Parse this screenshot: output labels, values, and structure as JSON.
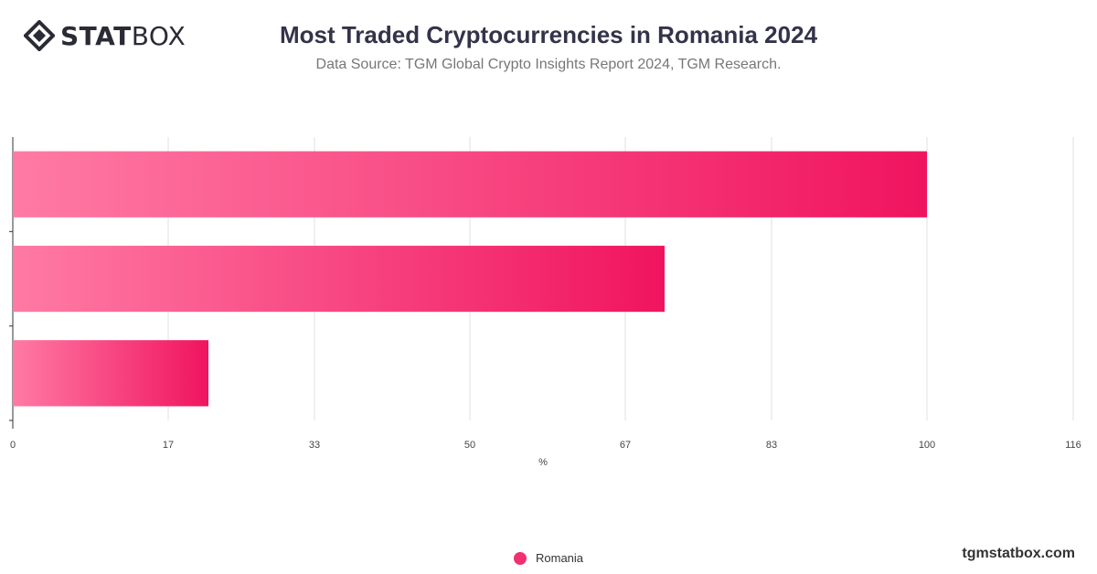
{
  "header": {
    "logo_text": "STATBOX",
    "title": "Most Traded Cryptocurrencies in Romania 2024",
    "subtitle": "Data Source: TGM Global Crypto Insights Report 2024, TGM Research."
  },
  "footer": {
    "site": "tgmstatbox.com"
  },
  "colors": {
    "bar_start": "#ff7aa5",
    "bar_end": "#f0145f",
    "legend": "#f0306f"
  },
  "chart_data": {
    "type": "bar",
    "orientation": "horizontal",
    "title": "Most Traded Cryptocurrencies in Romania 2024",
    "xlabel": "%",
    "ylabel": "",
    "xlim": [
      0,
      116
    ],
    "xticks": [
      "0",
      "17",
      "33",
      "50",
      "67",
      "83",
      "100",
      "116"
    ],
    "grid": true,
    "legend_position": "bottom",
    "series": [
      {
        "name": "Romania",
        "values": [
          100,
          71.3,
          21.4
        ]
      }
    ]
  }
}
